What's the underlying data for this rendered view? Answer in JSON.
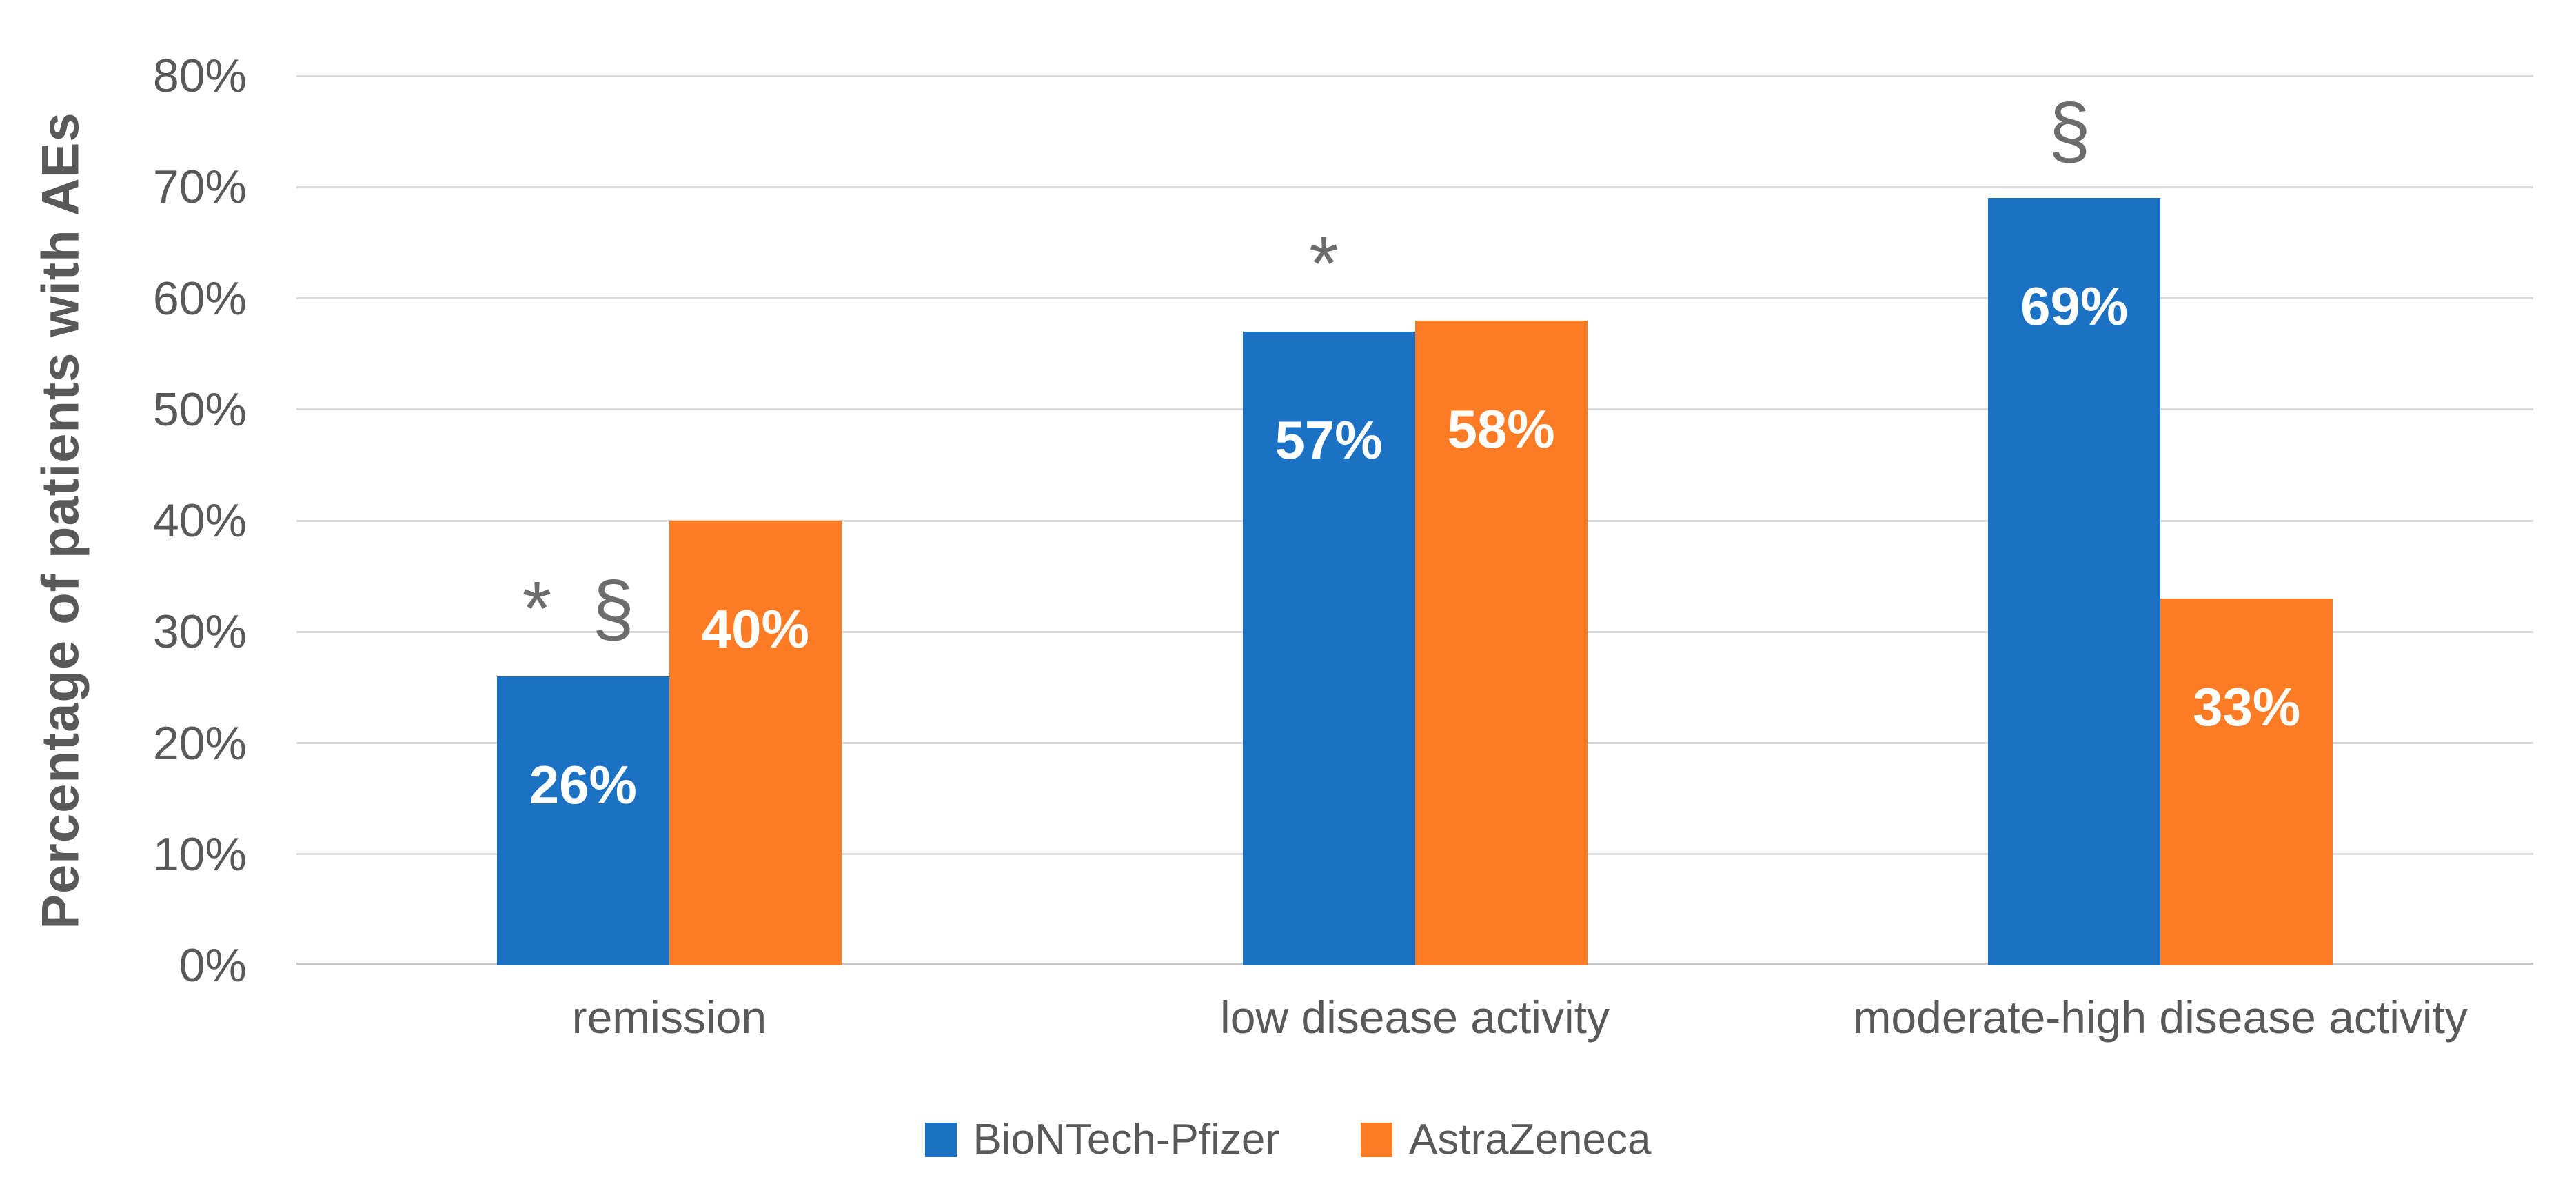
{
  "chart_data": {
    "type": "bar",
    "title": "",
    "ylabel": "Percentage of patients with AEs",
    "xlabel": "",
    "categories": [
      "remission",
      "low disease activity",
      "moderate-high disease activity"
    ],
    "series": [
      {
        "name": "BioNTech-Pfizer",
        "color": "#1b72c4",
        "values": [
          26,
          57,
          69
        ],
        "labels": [
          "26%",
          "57%",
          "69%"
        ]
      },
      {
        "name": "AstraZeneca",
        "color": "#fb7c25",
        "values": [
          40,
          58,
          33
        ],
        "labels": [
          "40%",
          "58%",
          "33%"
        ]
      }
    ],
    "annotations": [
      {
        "category_index": 0,
        "text": "* §"
      },
      {
        "category_index": 1,
        "text": "*"
      },
      {
        "category_index": 2,
        "text": "§"
      }
    ],
    "y_ticks": [
      "0%",
      "10%",
      "20%",
      "30%",
      "40%",
      "50%",
      "60%",
      "70%",
      "80%"
    ],
    "ylim": [
      0,
      80
    ],
    "grid": true,
    "gridline_color": "#dbdbdb",
    "axis_line_color": "#c6c6c6",
    "text_color": "#595959",
    "data_label_color": "#ffffff",
    "annotation_color": "#6c6c6c",
    "legend_position": "bottom"
  }
}
